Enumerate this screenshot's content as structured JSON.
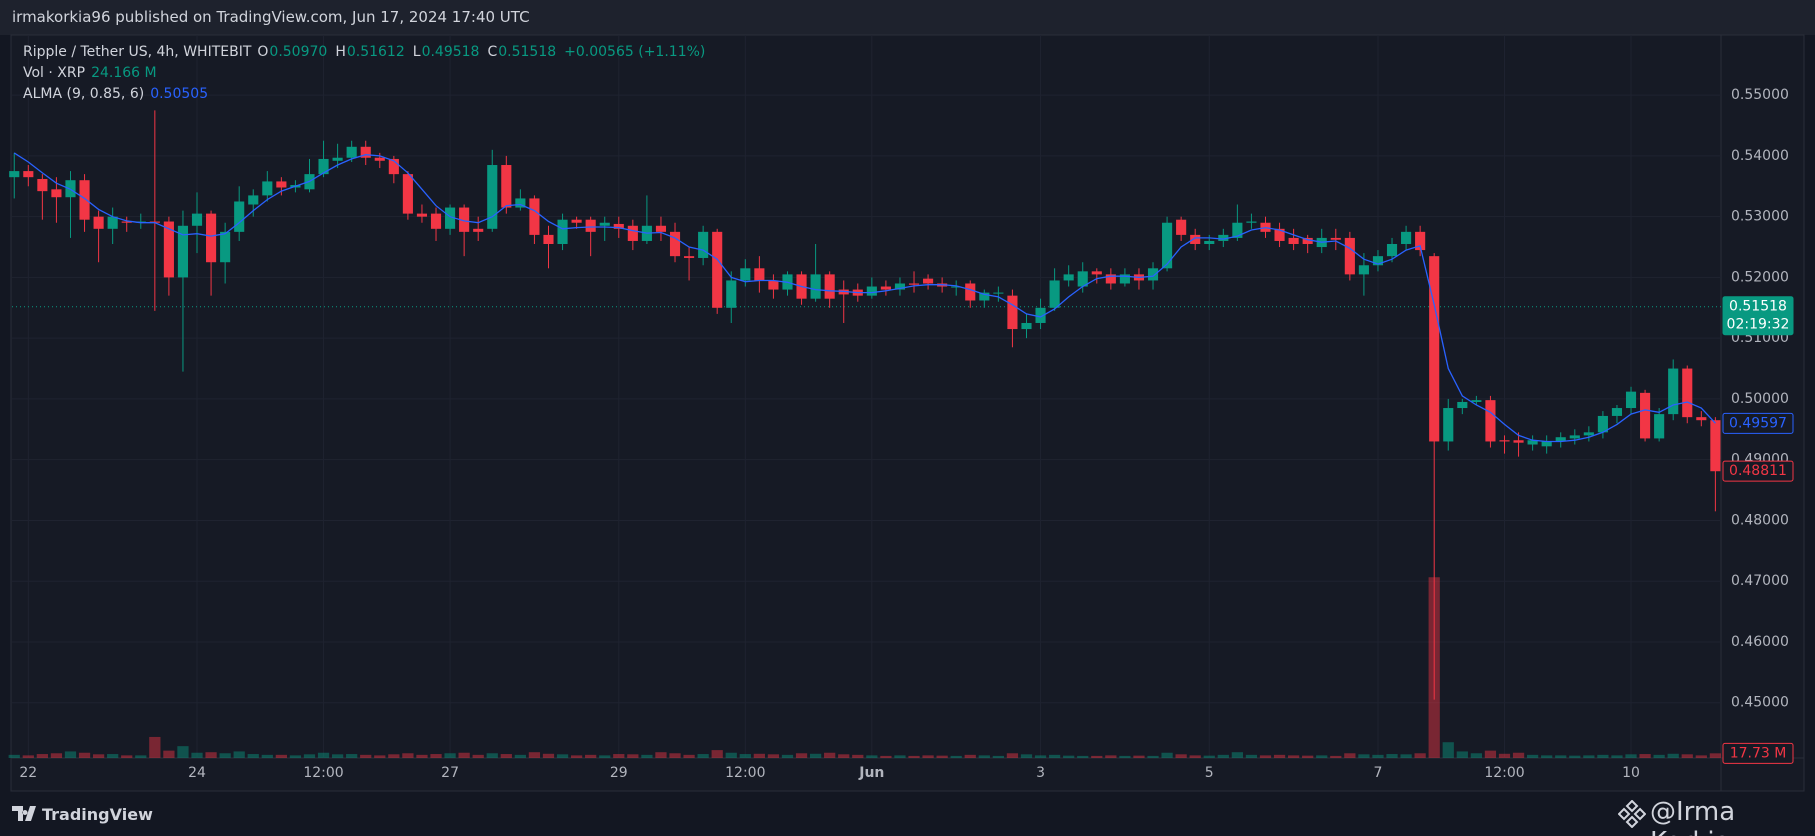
{
  "header": {
    "title": "irmakorkia96 published on TradingView.com, Jun 17, 2024 17:40 UTC"
  },
  "footer": {
    "brand": "TradingView",
    "watermark": "@Irma Korkia"
  },
  "chart_data": {
    "type": "candlestick",
    "legend": {
      "symbol": "Ripple / Tether US, 4h, WHITEBIT",
      "ohlc": [
        {
          "key": "O",
          "value": "0.50970"
        },
        {
          "key": "H",
          "value": "0.51612"
        },
        {
          "key": "L",
          "value": "0.49518"
        },
        {
          "key": "C",
          "value": "0.51518"
        }
      ],
      "change": "+0.00565 (+1.11%)",
      "volume_name": "Vol · XRP",
      "volume_value": "24.166 M",
      "alma_name": "ALMA (9, 0.85, 6)",
      "alma_value": "0.50505"
    },
    "up_color": "#089981",
    "down_color": "#f23645",
    "grid": true,
    "xlim": [
      -0.16,
      121.4
    ],
    "ylim": [
      0.4409,
      0.5599
    ],
    "xticks": [
      {
        "value": 1,
        "label": "22"
      },
      {
        "value": 13,
        "label": "24"
      },
      {
        "value": 22,
        "label": "12:00"
      },
      {
        "value": 31,
        "label": "27"
      },
      {
        "value": 43,
        "label": "29"
      },
      {
        "value": 52,
        "label": "12:00"
      },
      {
        "value": 61,
        "label": "Jun"
      },
      {
        "value": 73,
        "label": "3"
      },
      {
        "value": 85,
        "label": "5"
      },
      {
        "value": 97,
        "label": "7"
      },
      {
        "value": 106,
        "label": "12:00"
      },
      {
        "value": 115,
        "label": "10"
      }
    ],
    "yticks": [
      {
        "value": 0.45,
        "label": "0.45000"
      },
      {
        "value": 0.46,
        "label": "0.46000"
      },
      {
        "value": 0.47,
        "label": "0.47000"
      },
      {
        "value": 0.48,
        "label": "0.48000"
      },
      {
        "value": 0.49,
        "label": "0.49000"
      },
      {
        "value": 0.5,
        "label": "0.50000"
      },
      {
        "value": 0.51,
        "label": "0.51000"
      },
      {
        "value": 0.52,
        "label": "0.52000"
      },
      {
        "value": 0.53,
        "label": "0.53000"
      },
      {
        "value": 0.54,
        "label": "0.54000"
      },
      {
        "value": 0.55,
        "label": "0.55000"
      }
    ],
    "open": [
      0.5365,
      0.5375,
      0.5362,
      0.5345,
      0.5332,
      0.536,
      0.53,
      0.528,
      0.5292,
      0.529,
      0.5292,
      0.5292,
      0.52,
      0.5285,
      0.5305,
      0.5225,
      0.5275,
      0.532,
      0.5335,
      0.5358,
      0.5348,
      0.5345,
      0.537,
      0.5392,
      0.5397,
      0.5415,
      0.5397,
      0.5395,
      0.537,
      0.5305,
      0.5305,
      0.528,
      0.5315,
      0.528,
      0.528,
      0.5385,
      0.5315,
      0.533,
      0.527,
      0.5255,
      0.5295,
      0.5295,
      0.5285,
      0.5288,
      0.5285,
      0.526,
      0.5285,
      0.5275,
      0.5235,
      0.5232,
      0.5275,
      0.515,
      0.5195,
      0.5215,
      0.5195,
      0.518,
      0.5205,
      0.5165,
      0.5205,
      0.518,
      0.518,
      0.517,
      0.5185,
      0.518,
      0.519,
      0.5198,
      0.519,
      0.5185,
      0.519,
      0.5162,
      0.5175,
      0.517,
      0.5115,
      0.5125,
      0.515,
      0.5195,
      0.5185,
      0.521,
      0.5205,
      0.519,
      0.5205,
      0.5195,
      0.5215,
      0.5295,
      0.527,
      0.5255,
      0.526,
      0.5265,
      0.529,
      0.529,
      0.528,
      0.5265,
      0.5265,
      0.525,
      0.5265,
      0.5265,
      0.5205,
      0.522,
      0.5235,
      0.5255,
      0.5275,
      0.5235,
      0.493,
      0.4985,
      0.4995,
      0.4998,
      0.4932,
      0.4932,
      0.4925,
      0.4922,
      0.493,
      0.4935,
      0.494,
      0.4945,
      0.4972,
      0.4985,
      0.501,
      0.4935,
      0.4975,
      0.505,
      0.497,
      0.4965
    ],
    "high": [
      0.5405,
      0.5385,
      0.537,
      0.5365,
      0.5375,
      0.537,
      0.531,
      0.5315,
      0.53,
      0.5305,
      0.5475,
      0.53,
      0.531,
      0.534,
      0.531,
      0.529,
      0.535,
      0.5345,
      0.5375,
      0.5365,
      0.536,
      0.5395,
      0.5425,
      0.542,
      0.5425,
      0.5425,
      0.5405,
      0.54,
      0.5375,
      0.532,
      0.5315,
      0.532,
      0.532,
      0.53,
      0.541,
      0.54,
      0.5345,
      0.5335,
      0.5285,
      0.5305,
      0.53,
      0.53,
      0.53,
      0.53,
      0.5295,
      0.5335,
      0.53,
      0.529,
      0.525,
      0.5285,
      0.528,
      0.521,
      0.523,
      0.5235,
      0.5205,
      0.521,
      0.521,
      0.5255,
      0.521,
      0.5195,
      0.519,
      0.52,
      0.5195,
      0.52,
      0.521,
      0.5205,
      0.52,
      0.5195,
      0.5195,
      0.518,
      0.5185,
      0.518,
      0.514,
      0.5165,
      0.5215,
      0.522,
      0.5225,
      0.5215,
      0.5215,
      0.5215,
      0.5215,
      0.5225,
      0.53,
      0.53,
      0.528,
      0.527,
      0.528,
      0.532,
      0.5305,
      0.53,
      0.529,
      0.528,
      0.527,
      0.528,
      0.528,
      0.5275,
      0.524,
      0.5245,
      0.5265,
      0.5285,
      0.5285,
      0.524,
      0.5,
      0.5,
      0.5005,
      0.5005,
      0.494,
      0.4945,
      0.494,
      0.494,
      0.4945,
      0.495,
      0.4955,
      0.498,
      0.499,
      0.502,
      0.5015,
      0.4985,
      0.5065,
      0.5055,
      0.498,
      0.497
    ],
    "low": [
      0.533,
      0.535,
      0.5295,
      0.529,
      0.5265,
      0.5275,
      0.5225,
      0.5255,
      0.5275,
      0.528,
      0.5145,
      0.517,
      0.5045,
      0.524,
      0.517,
      0.519,
      0.526,
      0.53,
      0.5325,
      0.5335,
      0.534,
      0.534,
      0.5365,
      0.538,
      0.539,
      0.5385,
      0.538,
      0.5355,
      0.5295,
      0.529,
      0.526,
      0.527,
      0.5235,
      0.526,
      0.5275,
      0.5305,
      0.531,
      0.5255,
      0.5215,
      0.5245,
      0.528,
      0.5235,
      0.526,
      0.5265,
      0.5245,
      0.5255,
      0.526,
      0.5225,
      0.5195,
      0.522,
      0.514,
      0.5125,
      0.5185,
      0.5175,
      0.5165,
      0.517,
      0.5155,
      0.516,
      0.515,
      0.5125,
      0.516,
      0.5165,
      0.517,
      0.517,
      0.5175,
      0.518,
      0.5175,
      0.517,
      0.515,
      0.515,
      0.516,
      0.5085,
      0.51,
      0.5115,
      0.5145,
      0.5185,
      0.5175,
      0.519,
      0.518,
      0.5185,
      0.518,
      0.518,
      0.521,
      0.526,
      0.5245,
      0.5245,
      0.525,
      0.526,
      0.528,
      0.5265,
      0.525,
      0.5245,
      0.524,
      0.524,
      0.5245,
      0.5195,
      0.517,
      0.521,
      0.5225,
      0.5245,
      0.5235,
      0.4505,
      0.4915,
      0.4975,
      0.499,
      0.492,
      0.491,
      0.4905,
      0.4915,
      0.491,
      0.492,
      0.4925,
      0.493,
      0.4935,
      0.496,
      0.4975,
      0.493,
      0.493,
      0.4965,
      0.496,
      0.4955,
      0.4815
    ],
    "close": [
      0.5375,
      0.5365,
      0.5342,
      0.5332,
      0.536,
      0.5295,
      0.528,
      0.53,
      0.529,
      0.5292,
      0.529,
      0.52,
      0.5285,
      0.5305,
      0.5225,
      0.5275,
      0.5325,
      0.5335,
      0.5358,
      0.5348,
      0.5352,
      0.537,
      0.5395,
      0.5397,
      0.5415,
      0.5397,
      0.5392,
      0.537,
      0.5305,
      0.53,
      0.528,
      0.5315,
      0.5275,
      0.5275,
      0.5385,
      0.5315,
      0.533,
      0.527,
      0.5255,
      0.5295,
      0.529,
      0.5275,
      0.529,
      0.528,
      0.526,
      0.5285,
      0.5275,
      0.5235,
      0.5232,
      0.5275,
      0.515,
      0.5195,
      0.5215,
      0.5195,
      0.518,
      0.5205,
      0.5165,
      0.5205,
      0.5165,
      0.5172,
      0.517,
      0.5185,
      0.518,
      0.519,
      0.5188,
      0.519,
      0.5185,
      0.5185,
      0.5162,
      0.5175,
      0.5175,
      0.5115,
      0.5125,
      0.515,
      0.5195,
      0.5205,
      0.521,
      0.5205,
      0.519,
      0.5205,
      0.5195,
      0.5215,
      0.529,
      0.527,
      0.5255,
      0.526,
      0.527,
      0.529,
      0.5292,
      0.5275,
      0.526,
      0.5255,
      0.5255,
      0.5265,
      0.5262,
      0.5205,
      0.522,
      0.5235,
      0.5255,
      0.5275,
      0.5245,
      0.493,
      0.4985,
      0.4995,
      0.4998,
      0.493,
      0.493,
      0.4928,
      0.4932,
      0.493,
      0.4937,
      0.494,
      0.4945,
      0.4972,
      0.4985,
      0.5012,
      0.4935,
      0.4975,
      0.505,
      0.497,
      0.4965,
      0.4881
    ],
    "alma": {
      "name": "ALMA",
      "color": "#2962ff",
      "values": [
        0.5405,
        0.539,
        0.5372,
        0.5355,
        0.5345,
        0.533,
        0.5312,
        0.53,
        0.5293,
        0.529,
        0.529,
        0.528,
        0.527,
        0.5272,
        0.5268,
        0.5272,
        0.529,
        0.531,
        0.5328,
        0.5342,
        0.535,
        0.5358,
        0.5372,
        0.5385,
        0.5395,
        0.5402,
        0.54,
        0.5392,
        0.5372,
        0.5345,
        0.5318,
        0.53,
        0.5293,
        0.529,
        0.53,
        0.5318,
        0.532,
        0.531,
        0.5292,
        0.528,
        0.5282,
        0.5283,
        0.5283,
        0.5282,
        0.5277,
        0.5273,
        0.5274,
        0.5265,
        0.525,
        0.5245,
        0.523,
        0.52,
        0.5193,
        0.5195,
        0.5195,
        0.5192,
        0.5185,
        0.518,
        0.5178,
        0.5177,
        0.5175,
        0.5175,
        0.5178,
        0.5182,
        0.5186,
        0.5188,
        0.5188,
        0.5186,
        0.518,
        0.5172,
        0.5168,
        0.5155,
        0.514,
        0.5135,
        0.5148,
        0.5168,
        0.5185,
        0.5198,
        0.5202,
        0.5202,
        0.52,
        0.5202,
        0.5222,
        0.525,
        0.5265,
        0.5265,
        0.5263,
        0.5268,
        0.5278,
        0.5282,
        0.5278,
        0.527,
        0.5262,
        0.5258,
        0.526,
        0.5248,
        0.523,
        0.5222,
        0.523,
        0.5245,
        0.5252,
        0.5155,
        0.505,
        0.5005,
        0.499,
        0.4978,
        0.4958,
        0.494,
        0.4932,
        0.493,
        0.493,
        0.4932,
        0.4937,
        0.4945,
        0.4958,
        0.4975,
        0.4982,
        0.4978,
        0.499,
        0.4995,
        0.4985,
        0.496
      ]
    },
    "volume": {
      "name": "Vol",
      "up_color": "rgba(8,153,129,0.45)",
      "down_color": "rgba(242,54,69,0.45)",
      "values": [
        12,
        10,
        15,
        18,
        25,
        20,
        14,
        15,
        10,
        10,
        80,
        28,
        45,
        20,
        22,
        18,
        25,
        15,
        12,
        12,
        10,
        14,
        20,
        14,
        15,
        12,
        10,
        14,
        18,
        12,
        15,
        18,
        20,
        12,
        18,
        15,
        12,
        22,
        16,
        14,
        10,
        12,
        10,
        15,
        14,
        12,
        22,
        18,
        12,
        15,
        30,
        20,
        15,
        16,
        14,
        12,
        18,
        16,
        20,
        14,
        12,
        10,
        8,
        10,
        8,
        10,
        9,
        8,
        12,
        10,
        8,
        18,
        14,
        10,
        12,
        9,
        8,
        8,
        10,
        8,
        9,
        8,
        20,
        14,
        10,
        9,
        12,
        22,
        12,
        10,
        12,
        10,
        9,
        10,
        8,
        18,
        14,
        12,
        15,
        14,
        18,
        687,
        60,
        25,
        18,
        28,
        16,
        20,
        12,
        10,
        10,
        9,
        10,
        12,
        10,
        14,
        15,
        12,
        16,
        14,
        10,
        17.73
      ]
    },
    "price_lines": [
      {
        "value": 0.51518,
        "label": "0.51518",
        "countdown": "02:19:32",
        "color": "#089981",
        "style": "filled"
      },
      {
        "value": 0.49597,
        "label": "0.49597",
        "color": "#2962ff",
        "style": "outline"
      },
      {
        "value": 0.48811,
        "label": "0.48811",
        "color": "#f23645",
        "style": "outline"
      }
    ],
    "volume_marker": {
      "value": 17.73,
      "label": "17.73 M",
      "color": "#f23645"
    }
  }
}
